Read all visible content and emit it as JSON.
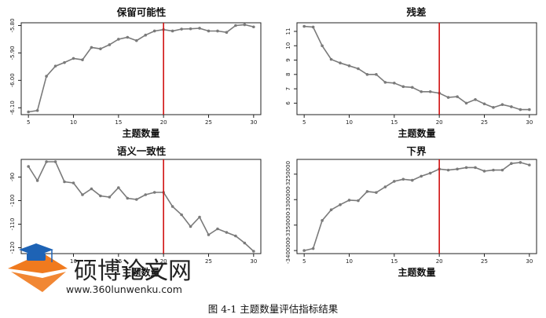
{
  "caption": "图 4-1   主题数量评估指标结果",
  "watermark": {
    "name": "硕博论文网",
    "url": "www.360lunwenku.com",
    "colors": {
      "orange": "#F07A1E",
      "blue": "#1E63B5"
    }
  },
  "colors": {
    "line": "#7a7a7a",
    "marker": "#7a7a7a",
    "vline": "#d01010",
    "axis": "#222222"
  },
  "chart_data": [
    {
      "type": "line",
      "title": "保留可能性",
      "xlabel": "主题数量",
      "ylabel": "",
      "x": [
        5,
        6,
        7,
        8,
        9,
        10,
        11,
        12,
        13,
        14,
        15,
        16,
        17,
        18,
        19,
        20,
        21,
        22,
        23,
        24,
        25,
        26,
        27,
        28,
        29,
        30
      ],
      "values": [
        -6.115,
        -6.11,
        -5.985,
        -5.948,
        -5.935,
        -5.92,
        -5.925,
        -5.88,
        -5.885,
        -5.87,
        -5.85,
        -5.843,
        -5.855,
        -5.835,
        -5.82,
        -5.815,
        -5.82,
        -5.813,
        -5.812,
        -5.81,
        -5.82,
        -5.82,
        -5.825,
        -5.8,
        -5.797,
        -5.805
      ],
      "xlim": [
        4.2,
        30.8
      ],
      "ylim": [
        -6.125,
        -5.79
      ],
      "xticks": [
        5,
        10,
        15,
        20,
        25,
        30
      ],
      "xtick_labels": [
        "5",
        "10",
        "15",
        "20",
        "25",
        "30"
      ],
      "yticks": [
        -6.1,
        -6.0,
        -5.9,
        -5.8
      ],
      "ytick_labels": [
        "-6.10",
        "-6.00",
        "-5.90",
        "-5.80"
      ],
      "vline": 20,
      "grid": false
    },
    {
      "type": "line",
      "title": "残差",
      "xlabel": "主题数量",
      "ylabel": "",
      "x": [
        5,
        6,
        7,
        8,
        9,
        10,
        11,
        12,
        13,
        14,
        15,
        16,
        17,
        18,
        19,
        20,
        21,
        22,
        23,
        24,
        25,
        26,
        27,
        28,
        29,
        30
      ],
      "values": [
        11.35,
        11.3,
        10,
        9.05,
        8.8,
        8.6,
        8.4,
        8,
        8,
        7.45,
        7.4,
        7.15,
        7.1,
        6.8,
        6.8,
        6.7,
        6.4,
        6.45,
        6,
        6.25,
        5.95,
        5.7,
        5.9,
        5.75,
        5.55,
        5.55
      ],
      "xlim": [
        4.2,
        30.8
      ],
      "ylim": [
        5.2,
        11.6
      ],
      "xticks": [
        5,
        10,
        15,
        20,
        25,
        30
      ],
      "xtick_labels": [
        "5",
        "10",
        "15",
        "20",
        "25",
        "30"
      ],
      "yticks": [
        6,
        7,
        8,
        9,
        10,
        11
      ],
      "ytick_labels": [
        "6",
        "7",
        "8",
        "9",
        "10",
        "11"
      ],
      "vline": 20,
      "grid": false
    },
    {
      "type": "line",
      "title": "语义一致性",
      "xlabel": "主题数量",
      "ylabel": "",
      "x": [
        5,
        6,
        7,
        8,
        9,
        10,
        11,
        12,
        13,
        14,
        15,
        16,
        17,
        18,
        19,
        20,
        21,
        22,
        23,
        24,
        25,
        26,
        27,
        28,
        29,
        30
      ],
      "values": [
        -85.5,
        -91.5,
        -83.5,
        -83.5,
        -92,
        -92.5,
        -97.5,
        -95,
        -98,
        -98.5,
        -94.5,
        -99,
        -99.5,
        -97.5,
        -96.5,
        -96.5,
        -102.5,
        -106,
        -111,
        -107,
        -114.5,
        -112,
        -113.5,
        -115,
        -118,
        -121.5
      ],
      "xlim": [
        4.2,
        30.8
      ],
      "ylim": [
        -122.5,
        -82.5
      ],
      "xticks": [
        5,
        10,
        15,
        20,
        25,
        30
      ],
      "xtick_labels": [
        "5",
        "10",
        "15",
        "20",
        "25",
        "30"
      ],
      "yticks": [
        -120,
        -110,
        -100,
        -90
      ],
      "ytick_labels": [
        "-120",
        "-110",
        "-100",
        "-90"
      ],
      "vline": 20,
      "grid": false
    },
    {
      "type": "line",
      "title": "下界",
      "xlabel": "主题数量",
      "ylabel": "",
      "x": [
        5,
        6,
        7,
        8,
        9,
        10,
        11,
        12,
        13,
        14,
        15,
        16,
        17,
        18,
        19,
        20,
        21,
        22,
        23,
        24,
        25,
        26,
        27,
        28,
        29,
        30
      ],
      "values": [
        -3400000,
        -3396000,
        -3341000,
        -3320000,
        -3310000,
        -3301000,
        -3302000,
        -3284000,
        -3286000,
        -3275000,
        -3264000,
        -3260000,
        -3262000,
        -3254000,
        -3248000,
        -3240000,
        -3242000,
        -3240000,
        -3237000,
        -3237000,
        -3244000,
        -3242000,
        -3242000,
        -3229000,
        -3227000,
        -3232000
      ],
      "xlim": [
        4.2,
        30.8
      ],
      "ylim": [
        -3406000,
        -3221000
      ],
      "xticks": [
        5,
        10,
        15,
        20,
        25,
        30
      ],
      "xtick_labels": [
        "5",
        "10",
        "15",
        "20",
        "25",
        "30"
      ],
      "yticks": [
        -3400000,
        -3350000,
        -3300000,
        -3250000
      ],
      "ytick_labels": [
        "-3400000",
        "-3350000",
        "-3300000",
        "-3250000"
      ],
      "vline": 20,
      "grid": false
    }
  ]
}
